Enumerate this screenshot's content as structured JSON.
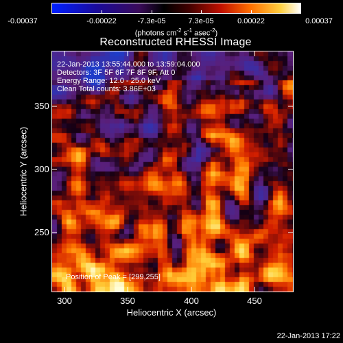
{
  "colorbar": {
    "labels": [
      "-0.00037",
      "-0.00022",
      "-7.3e-05",
      "7.3e-05",
      "0.00022",
      "0.00037"
    ],
    "unit_prefix": "(photons cm",
    "unit_exp1": "-2",
    "unit_mid1": " s",
    "unit_exp2": "-1",
    "unit_mid2": " asec",
    "unit_exp3": "-2",
    "unit_suffix": ")"
  },
  "title": "Reconstructed RHESSI Image",
  "overlay": {
    "line1": "22-Jan-2013 13:55:44.000 to 13:59:04.000",
    "line2": "Detectors: 3F 5F 6F 7F 8F 9F, Att 0",
    "line3": "Energy Range: 12.0 - 25.0 keV",
    "line4": "Clean     Total counts: 3.86E+03",
    "peak": "Position of Peak = [299,255]"
  },
  "axes": {
    "xlabel": "Heliocentric X (arcsec)",
    "ylabel": "Heliocentric Y (arcsec)",
    "xticks": [
      "300",
      "350",
      "400",
      "450"
    ],
    "yticks": [
      "350",
      "300",
      "250"
    ]
  },
  "timestamp": "22-Jan-2013 17:22",
  "colors": {
    "cmap": [
      "#0000ff",
      "#000060",
      "#5a1a8c",
      "#8a1040",
      "#d01000",
      "#ff7000",
      "#ffd040",
      "#ffffff"
    ]
  }
}
